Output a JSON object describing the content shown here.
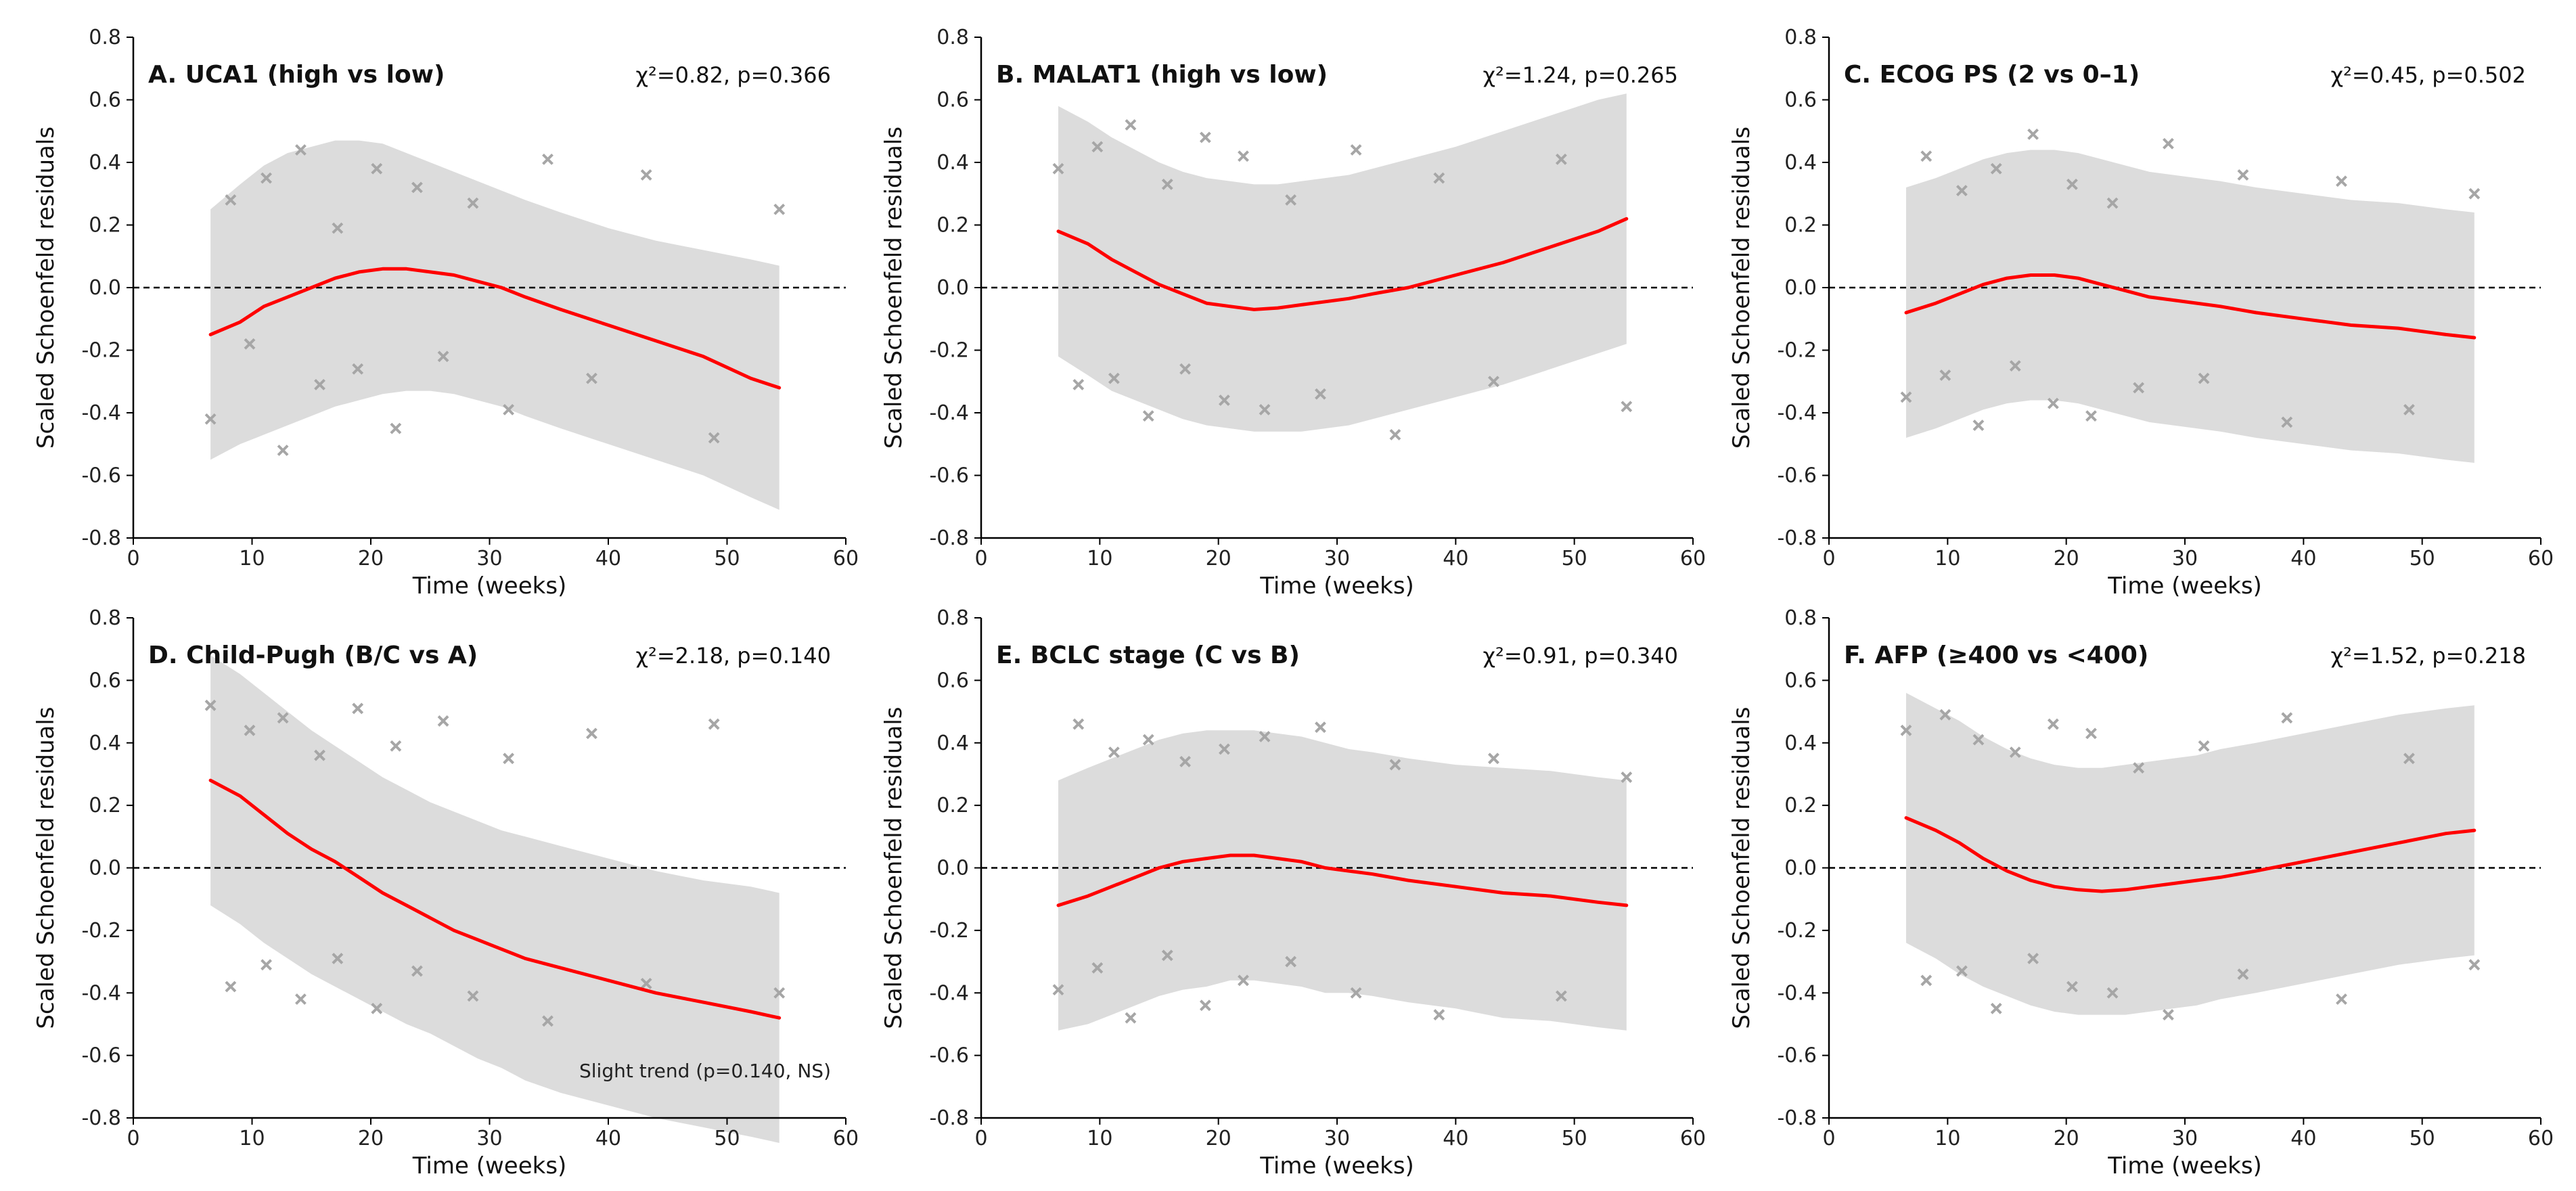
{
  "figure": {
    "ylabel": "Scaled Schoenfeld residuals",
    "xlabel": "Time (weeks)"
  },
  "chart_data": [
    {
      "type": "scatter",
      "title": "A. UCA1 (high vs low)",
      "stat": "χ²=0.82, p=0.366",
      "xlabel": "Time (weeks)",
      "ylabel": "Scaled Schoenfeld residuals",
      "xlim": [
        0,
        60
      ],
      "ylim": [
        -0.8,
        0.8
      ],
      "xticks": [
        "0",
        "10",
        "20",
        "30",
        "40",
        "50",
        "60"
      ],
      "yticks": [
        "-0.8",
        "-0.6",
        "-0.4",
        "-0.2",
        "0.0",
        "0.2",
        "0.4",
        "0.6",
        "0.8"
      ],
      "reference_line": 0,
      "residuals": {
        "x": [
          6.5,
          8.2,
          9.8,
          11.2,
          12.6,
          14.1,
          15.7,
          17.2,
          18.9,
          20.5,
          22.1,
          23.9,
          26.1,
          28.6,
          31.6,
          34.9,
          38.6,
          43.2,
          48.9,
          54.4
        ],
        "y": [
          -0.42,
          0.28,
          -0.18,
          0.35,
          -0.52,
          0.44,
          -0.31,
          0.19,
          -0.26,
          0.38,
          -0.45,
          0.32,
          -0.22,
          0.27,
          -0.39,
          0.41,
          -0.29,
          0.36,
          -0.48,
          0.25
        ]
      },
      "smooth": {
        "x": [
          6.5,
          9,
          11,
          13,
          15,
          17,
          19,
          21,
          23,
          25,
          27,
          29,
          31,
          33,
          36,
          40,
          44,
          48,
          52,
          54.4
        ],
        "y": [
          -0.15,
          -0.11,
          -0.06,
          -0.03,
          0.0,
          0.03,
          0.05,
          0.06,
          0.06,
          0.05,
          0.04,
          0.02,
          0.0,
          -0.03,
          -0.07,
          -0.12,
          -0.17,
          -0.22,
          -0.29,
          -0.32
        ]
      },
      "band_upper": [
        0.25,
        0.33,
        0.39,
        0.43,
        0.45,
        0.47,
        0.47,
        0.46,
        0.43,
        0.4,
        0.37,
        0.34,
        0.31,
        0.28,
        0.24,
        0.19,
        0.15,
        0.12,
        0.09,
        0.07
      ],
      "band_lower": [
        -0.55,
        -0.5,
        -0.47,
        -0.44,
        -0.41,
        -0.38,
        -0.36,
        -0.34,
        -0.33,
        -0.33,
        -0.34,
        -0.36,
        -0.38,
        -0.41,
        -0.45,
        -0.5,
        -0.55,
        -0.6,
        -0.67,
        -0.71
      ],
      "note": ""
    },
    {
      "type": "scatter",
      "title": "B. MALAT1 (high vs low)",
      "stat": "χ²=1.24, p=0.265",
      "xlabel": "Time (weeks)",
      "ylabel": "Scaled Schoenfeld residuals",
      "xlim": [
        0,
        60
      ],
      "ylim": [
        -0.8,
        0.8
      ],
      "xticks": [
        "0",
        "10",
        "20",
        "30",
        "40",
        "50",
        "60"
      ],
      "yticks": [
        "-0.8",
        "-0.6",
        "-0.4",
        "-0.2",
        "0.0",
        "0.2",
        "0.4",
        "0.6",
        "0.8"
      ],
      "reference_line": 0,
      "residuals": {
        "x": [
          6.5,
          8.2,
          9.8,
          11.2,
          12.6,
          14.1,
          15.7,
          17.2,
          18.9,
          20.5,
          22.1,
          23.9,
          26.1,
          28.6,
          31.6,
          34.9,
          38.6,
          43.2,
          48.9,
          54.4
        ],
        "y": [
          0.38,
          -0.31,
          0.45,
          -0.29,
          0.52,
          -0.41,
          0.33,
          -0.26,
          0.48,
          -0.36,
          0.42,
          -0.39,
          0.28,
          -0.34,
          0.44,
          -0.47,
          0.35,
          -0.3,
          0.41,
          -0.38
        ]
      },
      "smooth": {
        "x": [
          6.5,
          9,
          11,
          13,
          15,
          17,
          19,
          21,
          23,
          25,
          27,
          29,
          31,
          33,
          36,
          40,
          44,
          48,
          52,
          54.4
        ],
        "y": [
          0.18,
          0.14,
          0.09,
          0.05,
          0.01,
          -0.02,
          -0.05,
          -0.06,
          -0.07,
          -0.065,
          -0.055,
          -0.045,
          -0.035,
          -0.02,
          0.0,
          0.04,
          0.08,
          0.13,
          0.18,
          0.22
        ]
      },
      "band_upper": [
        0.58,
        0.53,
        0.48,
        0.44,
        0.4,
        0.37,
        0.35,
        0.34,
        0.33,
        0.33,
        0.34,
        0.35,
        0.36,
        0.38,
        0.41,
        0.45,
        0.5,
        0.55,
        0.6,
        0.62
      ],
      "band_lower": [
        -0.22,
        -0.28,
        -0.33,
        -0.36,
        -0.39,
        -0.42,
        -0.44,
        -0.45,
        -0.46,
        -0.46,
        -0.46,
        -0.45,
        -0.44,
        -0.42,
        -0.39,
        -0.35,
        -0.31,
        -0.26,
        -0.21,
        -0.18
      ],
      "note": ""
    },
    {
      "type": "scatter",
      "title": "C. ECOG PS (2 vs 0–1)",
      "stat": "χ²=0.45, p=0.502",
      "xlabel": "Time (weeks)",
      "ylabel": "Scaled Schoenfeld residuals",
      "xlim": [
        0,
        60
      ],
      "ylim": [
        -0.8,
        0.8
      ],
      "xticks": [
        "0",
        "10",
        "20",
        "30",
        "40",
        "50",
        "60"
      ],
      "yticks": [
        "-0.8",
        "-0.6",
        "-0.4",
        "-0.2",
        "0.0",
        "0.2",
        "0.4",
        "0.6",
        "0.8"
      ],
      "reference_line": 0,
      "residuals": {
        "x": [
          6.5,
          8.2,
          9.8,
          11.2,
          12.6,
          14.1,
          15.7,
          17.2,
          18.9,
          20.5,
          22.1,
          23.9,
          26.1,
          28.6,
          31.6,
          34.9,
          38.6,
          43.2,
          48.9,
          54.4
        ],
        "y": [
          -0.35,
          0.42,
          -0.28,
          0.31,
          -0.44,
          0.38,
          -0.25,
          0.49,
          -0.37,
          0.33,
          -0.41,
          0.27,
          -0.32,
          0.46,
          -0.29,
          0.36,
          -0.43,
          0.34,
          -0.39,
          0.3
        ]
      },
      "smooth": {
        "x": [
          6.5,
          9,
          11,
          13,
          15,
          17,
          19,
          21,
          23,
          25,
          27,
          29,
          31,
          33,
          36,
          40,
          44,
          48,
          52,
          54.4
        ],
        "y": [
          -0.08,
          -0.05,
          -0.02,
          0.01,
          0.03,
          0.04,
          0.04,
          0.03,
          0.01,
          -0.01,
          -0.03,
          -0.04,
          -0.05,
          -0.06,
          -0.08,
          -0.1,
          -0.12,
          -0.13,
          -0.15,
          -0.16
        ]
      },
      "band_upper": [
        0.32,
        0.35,
        0.38,
        0.41,
        0.43,
        0.44,
        0.44,
        0.43,
        0.41,
        0.39,
        0.37,
        0.36,
        0.35,
        0.34,
        0.32,
        0.3,
        0.28,
        0.27,
        0.25,
        0.24
      ],
      "band_lower": [
        -0.48,
        -0.45,
        -0.42,
        -0.39,
        -0.37,
        -0.36,
        -0.36,
        -0.37,
        -0.39,
        -0.41,
        -0.43,
        -0.44,
        -0.45,
        -0.46,
        -0.48,
        -0.5,
        -0.52,
        -0.53,
        -0.55,
        -0.56
      ],
      "note": ""
    },
    {
      "type": "scatter",
      "title": "D. Child-Pugh (B/C vs A)",
      "stat": "χ²=2.18, p=0.140",
      "xlabel": "Time (weeks)",
      "ylabel": "Scaled Schoenfeld residuals",
      "xlim": [
        0,
        60
      ],
      "ylim": [
        -0.8,
        0.8
      ],
      "xticks": [
        "0",
        "10",
        "20",
        "30",
        "40",
        "50",
        "60"
      ],
      "yticks": [
        "-0.8",
        "-0.6",
        "-0.4",
        "-0.2",
        "0.0",
        "0.2",
        "0.4",
        "0.6",
        "0.8"
      ],
      "reference_line": 0,
      "residuals": {
        "x": [
          6.5,
          8.2,
          9.8,
          11.2,
          12.6,
          14.1,
          15.7,
          17.2,
          18.9,
          20.5,
          22.1,
          23.9,
          26.1,
          28.6,
          31.6,
          34.9,
          38.6,
          43.2,
          48.9,
          54.4
        ],
        "y": [
          0.52,
          -0.38,
          0.44,
          -0.31,
          0.48,
          -0.42,
          0.36,
          -0.29,
          0.51,
          -0.45,
          0.39,
          -0.33,
          0.47,
          -0.41,
          0.35,
          -0.49,
          0.43,
          -0.37,
          0.46,
          -0.4
        ]
      },
      "smooth": {
        "x": [
          6.5,
          9,
          11,
          13,
          15,
          17,
          19,
          21,
          23,
          25,
          27,
          29,
          31,
          33,
          36,
          40,
          44,
          48,
          52,
          54.4
        ],
        "y": [
          0.28,
          0.23,
          0.17,
          0.11,
          0.06,
          0.02,
          -0.03,
          -0.08,
          -0.12,
          -0.16,
          -0.2,
          -0.23,
          -0.26,
          -0.29,
          -0.32,
          -0.36,
          -0.4,
          -0.43,
          -0.46,
          -0.48
        ]
      },
      "band_upper": [
        0.68,
        0.62,
        0.56,
        0.5,
        0.44,
        0.39,
        0.34,
        0.29,
        0.25,
        0.21,
        0.18,
        0.15,
        0.12,
        0.1,
        0.07,
        0.03,
        -0.01,
        -0.04,
        -0.06,
        -0.08
      ],
      "band_lower": [
        -0.12,
        -0.18,
        -0.24,
        -0.29,
        -0.34,
        -0.38,
        -0.42,
        -0.46,
        -0.5,
        -0.53,
        -0.57,
        -0.61,
        -0.64,
        -0.68,
        -0.72,
        -0.76,
        -0.8,
        -0.83,
        -0.86,
        -0.88
      ],
      "note": "Slight trend (p=0.140, NS)"
    },
    {
      "type": "scatter",
      "title": "E. BCLC stage (C vs B)",
      "stat": "χ²=0.91, p=0.340",
      "xlabel": "Time (weeks)",
      "ylabel": "Scaled Schoenfeld residuals",
      "xlim": [
        0,
        60
      ],
      "ylim": [
        -0.8,
        0.8
      ],
      "xticks": [
        "0",
        "10",
        "20",
        "30",
        "40",
        "50",
        "60"
      ],
      "yticks": [
        "-0.8",
        "-0.6",
        "-0.4",
        "-0.2",
        "0.0",
        "0.2",
        "0.4",
        "0.6",
        "0.8"
      ],
      "reference_line": 0,
      "residuals": {
        "x": [
          6.5,
          8.2,
          9.8,
          11.2,
          12.6,
          14.1,
          15.7,
          17.2,
          18.9,
          20.5,
          22.1,
          23.9,
          26.1,
          28.6,
          31.6,
          34.9,
          38.6,
          43.2,
          48.9,
          54.4
        ],
        "y": [
          -0.39,
          0.46,
          -0.32,
          0.37,
          -0.48,
          0.41,
          -0.28,
          0.34,
          -0.44,
          0.38,
          -0.36,
          0.42,
          -0.3,
          0.45,
          -0.4,
          0.33,
          -0.47,
          0.35,
          -0.41,
          0.29
        ]
      },
      "smooth": {
        "x": [
          6.5,
          9,
          11,
          13,
          15,
          17,
          19,
          21,
          23,
          25,
          27,
          29,
          31,
          33,
          36,
          40,
          44,
          48,
          52,
          54.4
        ],
        "y": [
          -0.12,
          -0.09,
          -0.06,
          -0.03,
          0.0,
          0.02,
          0.03,
          0.04,
          0.04,
          0.03,
          0.02,
          0.0,
          -0.01,
          -0.02,
          -0.04,
          -0.06,
          -0.08,
          -0.09,
          -0.11,
          -0.12
        ]
      },
      "band_upper": [
        0.28,
        0.32,
        0.35,
        0.38,
        0.41,
        0.43,
        0.44,
        0.44,
        0.44,
        0.43,
        0.42,
        0.4,
        0.38,
        0.37,
        0.35,
        0.33,
        0.32,
        0.31,
        0.29,
        0.28
      ],
      "band_lower": [
        -0.52,
        -0.5,
        -0.47,
        -0.44,
        -0.41,
        -0.39,
        -0.38,
        -0.36,
        -0.36,
        -0.37,
        -0.38,
        -0.4,
        -0.4,
        -0.41,
        -0.43,
        -0.45,
        -0.48,
        -0.49,
        -0.51,
        -0.52
      ],
      "note": ""
    },
    {
      "type": "scatter",
      "title": "F. AFP (≥400 vs <400)",
      "stat": "χ²=1.52, p=0.218",
      "xlabel": "Time (weeks)",
      "ylabel": "Scaled Schoenfeld residuals",
      "xlim": [
        0,
        60
      ],
      "ylim": [
        -0.8,
        0.8
      ],
      "xticks": [
        "0",
        "10",
        "20",
        "30",
        "40",
        "50",
        "60"
      ],
      "yticks": [
        "-0.8",
        "-0.6",
        "-0.4",
        "-0.2",
        "0.0",
        "0.2",
        "0.4",
        "0.6",
        "0.8"
      ],
      "reference_line": 0,
      "residuals": {
        "x": [
          6.5,
          8.2,
          9.8,
          11.2,
          12.6,
          14.1,
          15.7,
          17.2,
          18.9,
          20.5,
          22.1,
          23.9,
          26.1,
          28.6,
          31.6,
          34.9,
          38.6,
          43.2,
          48.9,
          54.4
        ],
        "y": [
          0.44,
          -0.36,
          0.49,
          -0.33,
          0.41,
          -0.45,
          0.37,
          -0.29,
          0.46,
          -0.38,
          0.43,
          -0.4,
          0.32,
          -0.47,
          0.39,
          -0.34,
          0.48,
          -0.42,
          0.35,
          -0.31
        ]
      },
      "smooth": {
        "x": [
          6.5,
          9,
          11,
          13,
          15,
          17,
          19,
          21,
          23,
          25,
          27,
          29,
          31,
          33,
          36,
          40,
          44,
          48,
          52,
          54.4
        ],
        "y": [
          0.16,
          0.12,
          0.08,
          0.03,
          -0.01,
          -0.04,
          -0.06,
          -0.07,
          -0.075,
          -0.07,
          -0.06,
          -0.05,
          -0.04,
          -0.03,
          -0.01,
          0.02,
          0.05,
          0.08,
          0.11,
          0.12
        ]
      },
      "band_upper": [
        0.56,
        0.51,
        0.47,
        0.42,
        0.38,
        0.35,
        0.33,
        0.32,
        0.32,
        0.33,
        0.34,
        0.35,
        0.36,
        0.38,
        0.4,
        0.43,
        0.46,
        0.49,
        0.51,
        0.52
      ],
      "band_lower": [
        -0.24,
        -0.29,
        -0.34,
        -0.38,
        -0.41,
        -0.44,
        -0.46,
        -0.47,
        -0.47,
        -0.47,
        -0.46,
        -0.45,
        -0.44,
        -0.42,
        -0.4,
        -0.37,
        -0.34,
        -0.31,
        -0.29,
        -0.28
      ],
      "note": ""
    }
  ],
  "colors": {
    "smooth_line": "#ff0000",
    "band_fill": "#dcdcdc",
    "residual_marker": "#a6a6a6",
    "reference_line": "#000000",
    "axis": "#000000"
  }
}
